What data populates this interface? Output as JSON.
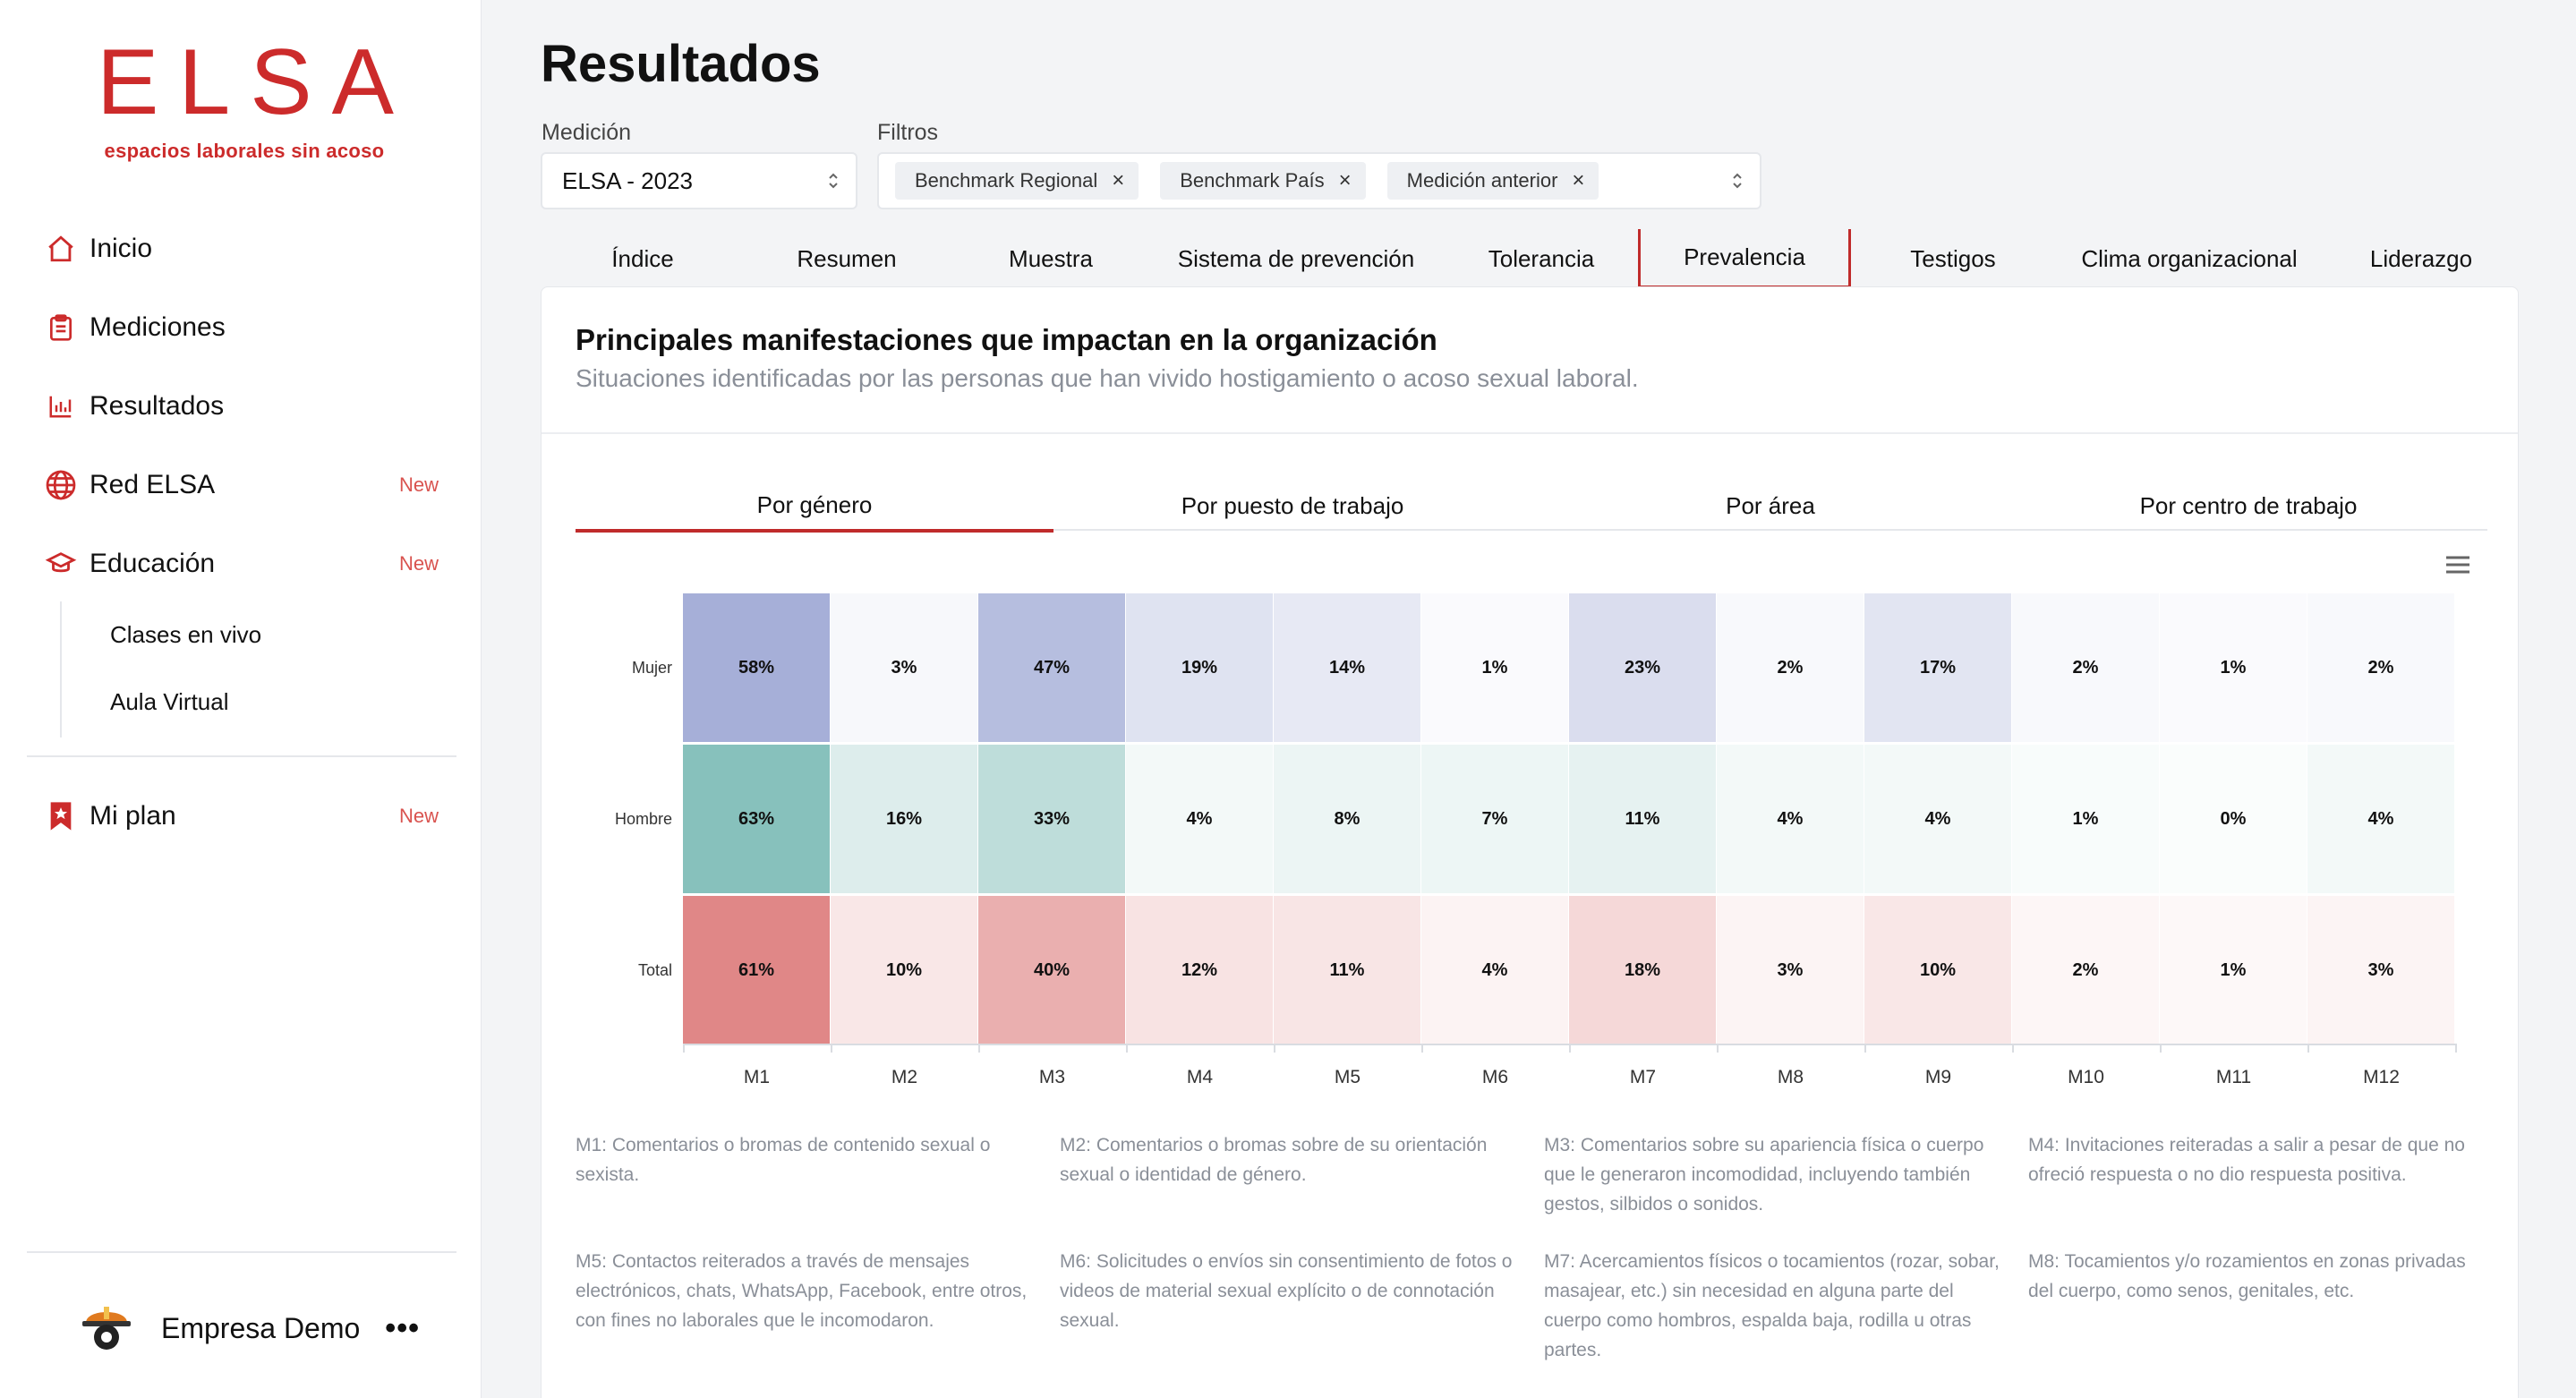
{
  "brand": {
    "logo_text": "ELSA",
    "tagline": "espacios laborales sin acoso",
    "color": "#cc2b2b"
  },
  "sidebar": {
    "items": [
      {
        "label": "Inicio",
        "icon": "home-icon",
        "new": ""
      },
      {
        "label": "Mediciones",
        "icon": "clipboard-icon",
        "new": ""
      },
      {
        "label": "Resultados",
        "icon": "bar-chart-icon",
        "new": ""
      },
      {
        "label": "Red ELSA",
        "icon": "globe-icon",
        "new": "New"
      },
      {
        "label": "Educación",
        "icon": "graduation-cap-icon",
        "new": "New"
      }
    ],
    "sub_items": [
      "Clases en vivo",
      "Aula Virtual"
    ],
    "plan": {
      "label": "Mi plan",
      "icon": "bookmark-icon",
      "new": "New"
    },
    "company": {
      "name": "Empresa Demo",
      "more": "•••",
      "icon": "company-logo-icon"
    }
  },
  "page": {
    "title": "Resultados"
  },
  "filters": {
    "medicion_label": "Medición",
    "medicion_value": "ELSA - 2023",
    "filtros_label": "Filtros",
    "chips": [
      "Benchmark Regional",
      "Benchmark País",
      "Medición anterior"
    ],
    "chip_close": "×"
  },
  "tabs": [
    "Índice",
    "Resumen",
    "Muestra",
    "Sistema de prevención",
    "Tolerancia",
    "Prevalencia",
    "Testigos",
    "Clima organizacional",
    "Liderazgo"
  ],
  "active_tab": "Prevalencia",
  "card": {
    "title": "Principales manifestaciones que impactan en la organización",
    "subtitle": "Situaciones identificadas por las personas que han vivido hostigamiento o acoso sexual laboral."
  },
  "subtabs": [
    "Por género",
    "Por puesto de trabajo",
    "Por área",
    "Por centro de trabajo"
  ],
  "active_subtab": "Por género",
  "chart_data": {
    "type": "heatmap",
    "title": "",
    "x": [
      "M1",
      "M2",
      "M3",
      "M4",
      "M5",
      "M6",
      "M7",
      "M8",
      "M9",
      "M10",
      "M11",
      "M12"
    ],
    "y": [
      "Mujer",
      "Hombre",
      "Total"
    ],
    "values": [
      [
        58,
        3,
        47,
        19,
        14,
        1,
        23,
        2,
        17,
        2,
        1,
        2
      ],
      [
        63,
        16,
        33,
        4,
        8,
        7,
        11,
        4,
        4,
        1,
        0,
        4
      ],
      [
        61,
        10,
        40,
        12,
        11,
        4,
        18,
        3,
        10,
        2,
        1,
        3
      ]
    ],
    "row_colors": [
      "#7f8cc6",
      "#5faca5",
      "#d45a5a"
    ],
    "unit": "%"
  },
  "legend": [
    "M1: Comentarios o bromas de contenido sexual o sexista.",
    "M2: Comentarios o bromas sobre de su orientación sexual o identidad de género.",
    "M3: Comentarios sobre su apariencia física o cuerpo que le generaron incomodidad, incluyendo también gestos, silbidos o sonidos.",
    "M4: Invitaciones reiteradas a salir a pesar de que no ofreció respuesta o no dio respuesta positiva.",
    "M5: Contactos reiterados a través de mensajes electrónicos, chats, WhatsApp, Facebook, entre otros, con fines no laborales que le incomodaron.",
    "M6: Solicitudes o envíos sin consentimiento de fotos o videos de material sexual explícito o de connotación sexual.",
    "M7: Acercamientos físicos o tocamientos (rozar, sobar, masajear, etc.) sin necesidad en alguna parte del cuerpo como hombros, espalda baja, rodilla u otras partes.",
    "M8: Tocamientos y/o rozamientos en zonas privadas del cuerpo, como senos, genitales, etc."
  ]
}
